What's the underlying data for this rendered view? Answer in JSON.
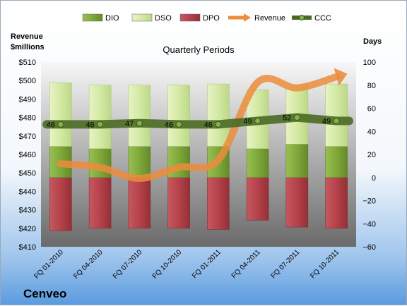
{
  "company": "Cenveo",
  "chart_data": {
    "type": "bar",
    "title": "Quarterly Periods",
    "left_axis_label_line1": "Revenue",
    "left_axis_label_line2": "$millions",
    "right_axis_label": "Days",
    "categories": [
      "FQ 01-2010",
      "FQ 04-2010",
      "FQ 07-2010",
      "FQ 10-2010",
      "FQ 01-2011",
      "FQ 04-2011",
      "FQ 07-2011",
      "FQ 10-2011"
    ],
    "left_ylim": [
      410,
      510
    ],
    "left_ticks": [
      "$410",
      "$420",
      "$430",
      "$440",
      "$450",
      "$460",
      "$470",
      "$480",
      "$490",
      "$500",
      "$510"
    ],
    "right_ylim": [
      -60,
      100
    ],
    "right_ticks": [
      "100",
      "80",
      "60",
      "40",
      "20",
      "0",
      "−20",
      "−40",
      "−60"
    ],
    "legend": [
      "DIO",
      "DSO",
      "DPO",
      "Revenue",
      "CCC"
    ],
    "legend_placement": "top",
    "grid": false,
    "series": [
      {
        "name": "DIO",
        "axis": "right",
        "values": [
          27,
          25,
          27,
          27,
          27,
          25,
          29,
          27
        ],
        "color": "#7fa83a"
      },
      {
        "name": "DSO",
        "axis": "right",
        "values": [
          55,
          55,
          53,
          53,
          54,
          51,
          51,
          54
        ],
        "color": "#d4e9a4"
      },
      {
        "name": "DPO",
        "axis": "right",
        "values": [
          -46,
          -44,
          -44,
          -44,
          -45,
          -37,
          -43,
          -44
        ],
        "color": "#b5424a"
      },
      {
        "name": "Revenue",
        "axis": "left",
        "values": [
          455,
          453,
          447,
          453,
          457,
          499,
          496,
          502
        ],
        "color": "#ec8c3c"
      },
      {
        "name": "CCC",
        "axis": "right",
        "values": [
          46,
          46,
          47,
          46,
          46,
          49,
          52,
          49
        ],
        "labels": [
          "46",
          "46",
          "47",
          "46",
          "46",
          "49",
          "52",
          "49"
        ],
        "color": "#5a7a2c"
      }
    ]
  }
}
